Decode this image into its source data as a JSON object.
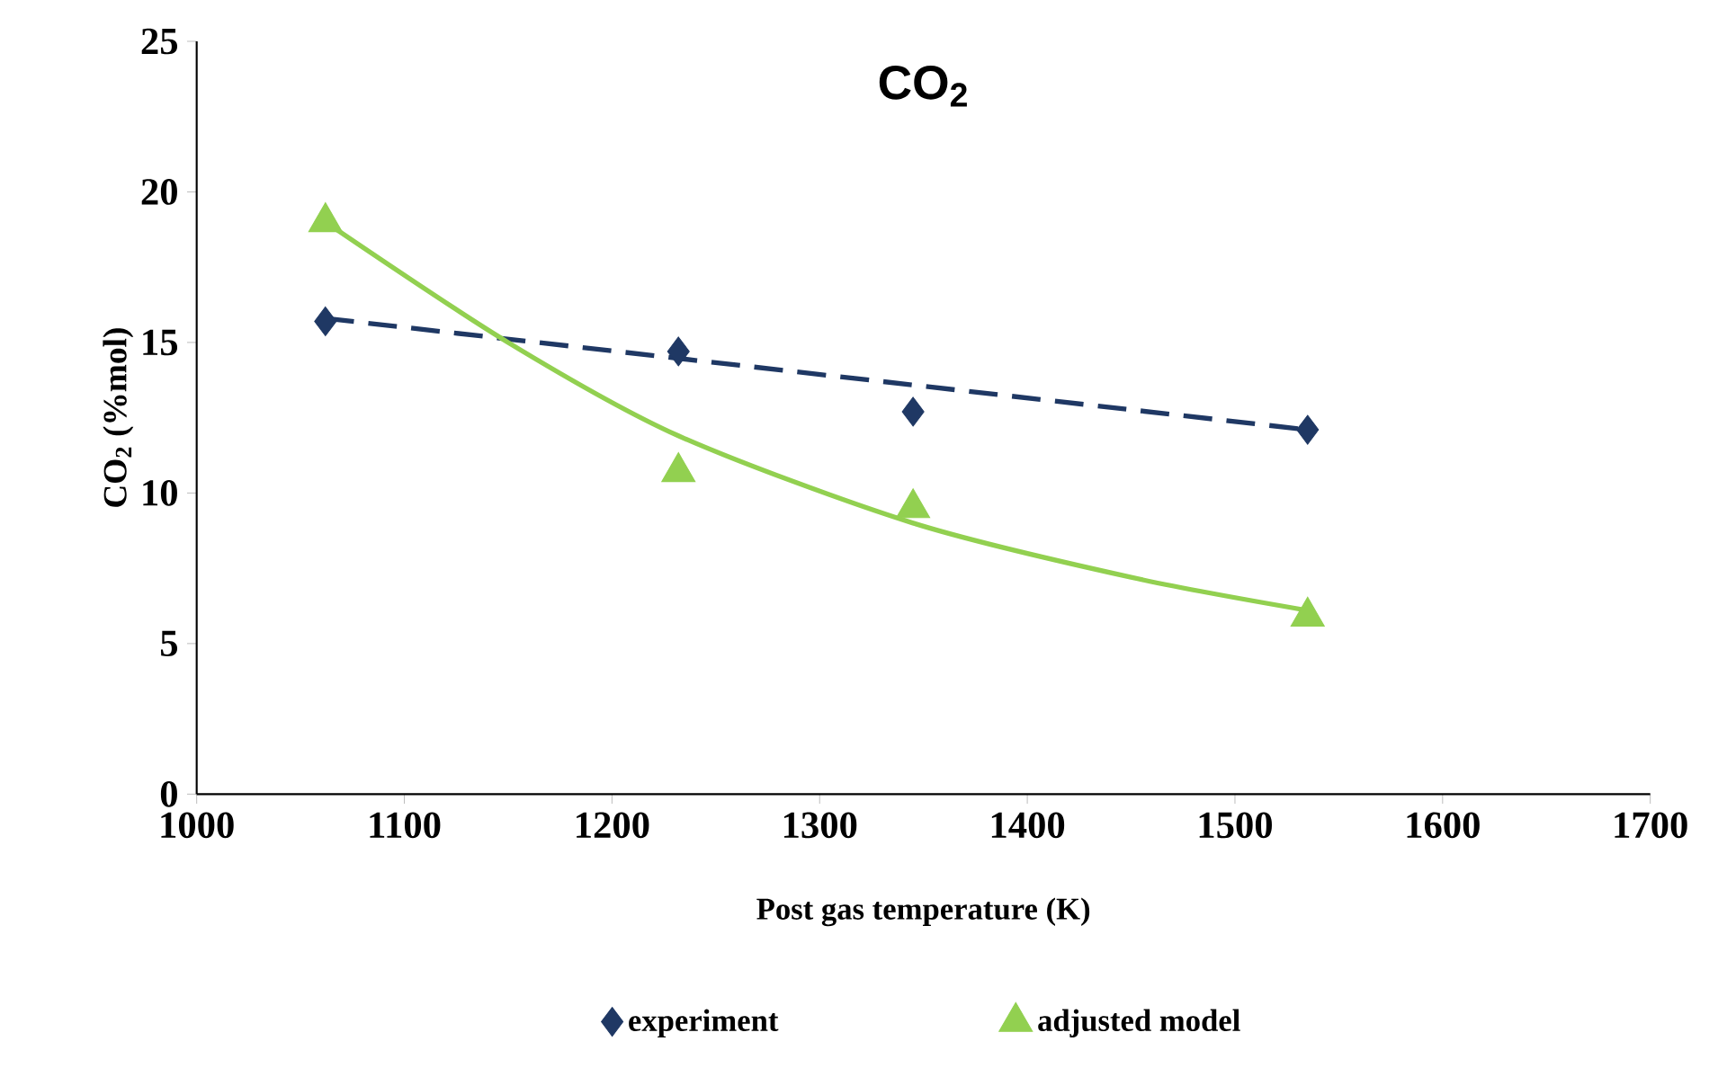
{
  "chart_data": {
    "type": "scatter",
    "title": "CO$_{2}$",
    "xlabel": "Post gas temperature (K)",
    "ylabel": "CO$_{2}$ (%mol)",
    "xlim": [
      1000,
      1700
    ],
    "xticks": [
      1000,
      1100,
      1200,
      1300,
      1400,
      1500,
      1600,
      1700
    ],
    "ylim": [
      0,
      25
    ],
    "yticks": [
      0,
      5,
      10,
      15,
      20,
      25
    ],
    "grid": false,
    "legend": "bottom",
    "series": [
      {
        "name": "experiment",
        "marker": "diamond",
        "color": "#1f3864",
        "x": [
          1062,
          1232,
          1345,
          1535
        ],
        "values": [
          15.7,
          14.7,
          12.7,
          12.1
        ]
      },
      {
        "name": "adjusted model",
        "marker": "triangle",
        "color": "#92d050",
        "x": [
          1062,
          1232,
          1345,
          1535
        ],
        "values": [
          19.0,
          10.7,
          9.5,
          5.9
        ]
      },
      {
        "type": "line",
        "marker": "none",
        "line_style": "dashed",
        "color": "#1f3864",
        "x": [
          1062,
          1535
        ],
        "values": [
          15.8,
          12.1
        ]
      },
      {
        "type": "line",
        "marker": "none",
        "line_style": "solid",
        "color": "#92d050",
        "x": [
          1062,
          1150,
          1232,
          1345,
          1450,
          1535
        ],
        "values": [
          19.0,
          15.0,
          11.9,
          9.0,
          7.2,
          6.1
        ]
      }
    ]
  }
}
